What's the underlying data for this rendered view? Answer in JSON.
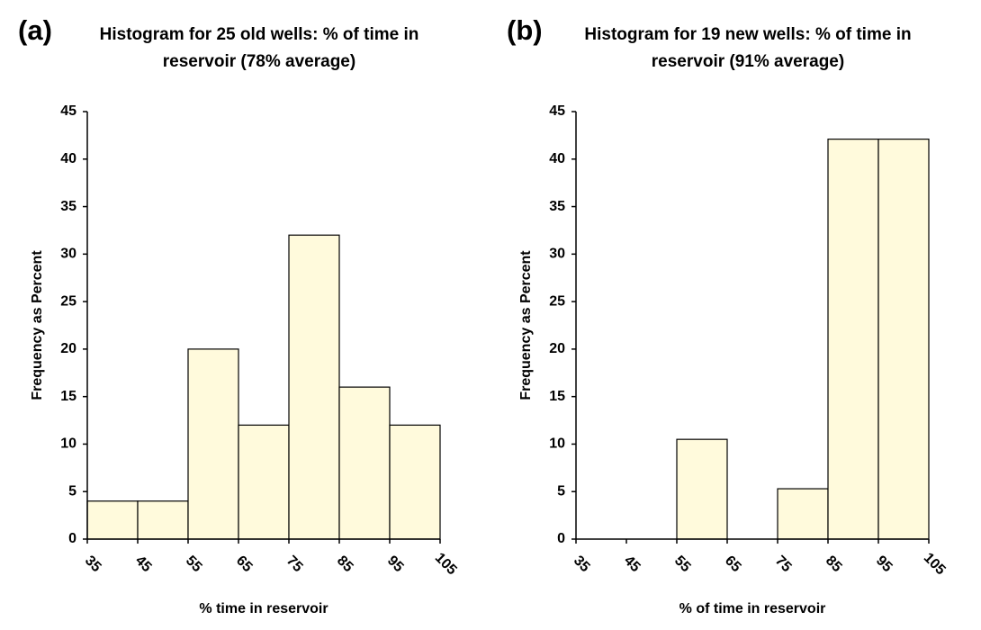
{
  "chart_data": [
    {
      "type": "histogram",
      "label": "(a)",
      "title": "Histogram for 25 old wells: % of time in reservoir (78% average)",
      "bins": [
        35,
        45,
        55,
        65,
        75,
        85,
        95,
        105
      ],
      "values": [
        4,
        4,
        20,
        12,
        32,
        16,
        12
      ],
      "color": "#fffadc",
      "xlabel": "% time in reservoir",
      "ylabel": "Frequency as Percent",
      "xlim": [
        35,
        105
      ],
      "ylim": [
        0,
        45
      ],
      "yticks": [
        0,
        5,
        10,
        15,
        20,
        25,
        30,
        35,
        40,
        45
      ]
    },
    {
      "type": "histogram",
      "label": "(b)",
      "title": "Histogram for 19 new wells: % of time in reservoir (91% average)",
      "bins": [
        35,
        45,
        55,
        65,
        75,
        85,
        95,
        105
      ],
      "values": [
        0,
        0,
        10.5,
        0,
        5.3,
        42.1,
        42.1
      ],
      "color": "#fffadc",
      "xlabel": "% of time in reservoir",
      "ylabel": "Frequency as Percent",
      "xlim": [
        35,
        105
      ],
      "ylim": [
        0,
        45
      ],
      "yticks": [
        0,
        5,
        10,
        15,
        20,
        25,
        30,
        35,
        40,
        45
      ]
    }
  ]
}
